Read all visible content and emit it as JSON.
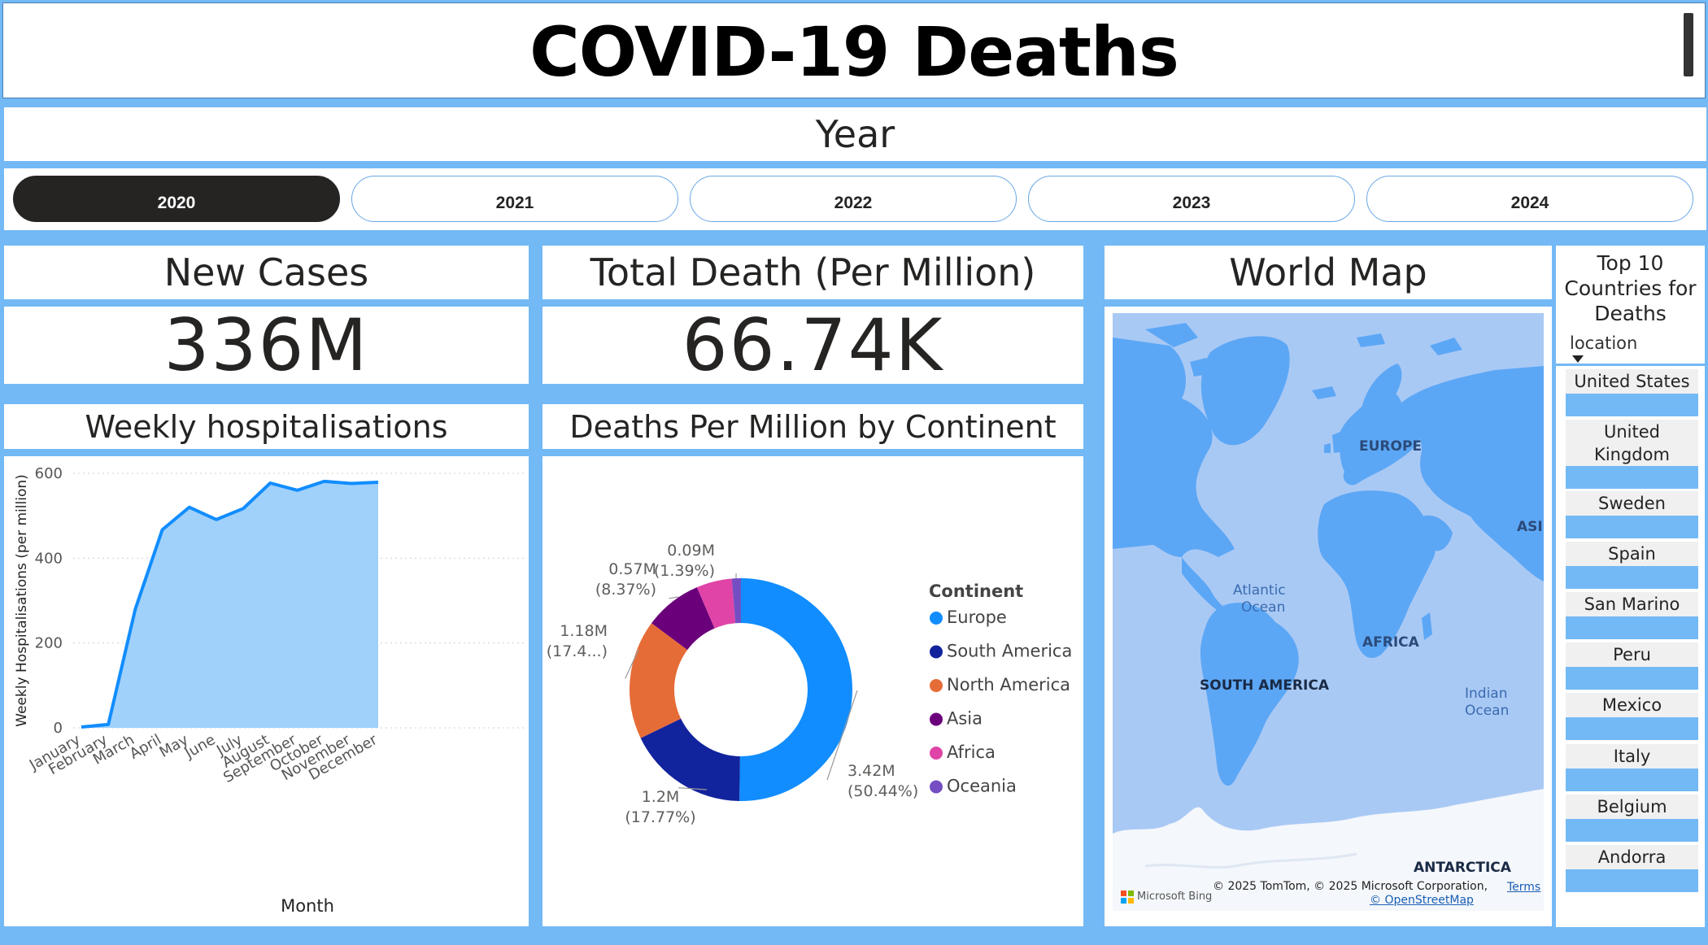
{
  "header": {
    "title": "COVID-19 Deaths"
  },
  "year_filter": {
    "title": "Year",
    "options": [
      "2020",
      "2021",
      "2022",
      "2023",
      "2024"
    ],
    "selected": "2020"
  },
  "kpis": {
    "new_cases": {
      "label": "New Cases",
      "value": "336M"
    },
    "total_death": {
      "label": "Total Death (Per Million)",
      "value": "66.74K"
    }
  },
  "hosp_chart": {
    "title": "Weekly hospitalisations"
  },
  "donut_chart": {
    "title": "Deaths Per Million by Continent"
  },
  "map": {
    "title": "World Map",
    "labels": {
      "europe": "EUROPE",
      "asia": "ASI",
      "atlantic_1": "Atlantic",
      "atlantic_2": "Ocean",
      "africa": "AFRICA",
      "south_america": "SOUTH AMERICA",
      "indian_1": "Indian",
      "indian_2": "Ocean",
      "antarctica": "ANTARCTICA"
    },
    "attribution": "© 2025 TomTom, © 2025 Microsoft Corporation,",
    "terms_link": "Terms",
    "osm_link": "© OpenStreetMap",
    "bing_logo_text": "Microsoft Bing"
  },
  "top_countries": {
    "title_lines": [
      "Top 10",
      "Countries for",
      "Deaths"
    ],
    "column_label": "location",
    "items": [
      "United States",
      "United Kingdom",
      "Sweden",
      "Spain",
      "San Marino",
      "Peru",
      "Mexico",
      "Italy",
      "Belgium",
      "Andorra"
    ]
  },
  "chart_data": [
    {
      "type": "area",
      "title": "Weekly hospitalisations",
      "xlabel": "Month",
      "ylabel": "Weekly Hospitalisations (per million)",
      "categories": [
        "January",
        "February",
        "March",
        "April",
        "May",
        "June",
        "July",
        "August",
        "September",
        "October",
        "November",
        "December"
      ],
      "values": [
        2,
        8,
        280,
        467,
        520,
        491,
        517,
        577,
        560,
        581,
        576,
        579
      ],
      "ylim": [
        0,
        600
      ],
      "yticks": [
        0,
        200,
        400,
        600
      ],
      "grid": true,
      "color": "#118dff",
      "fill": "#a0d1fb"
    },
    {
      "type": "pie",
      "title": "Deaths Per Million by Continent",
      "legend_title": "Continent",
      "legend_position": "right",
      "slices": [
        {
          "name": "Europe",
          "value": 3.42,
          "label": "3.42M",
          "pct_label": "(50.44%)",
          "color": "#118dff"
        },
        {
          "name": "South America",
          "value": 1.2,
          "label": "1.2M",
          "pct_label": "(17.77%)",
          "color": "#12239e"
        },
        {
          "name": "North America",
          "value": 1.18,
          "label": "1.18M",
          "pct_label": "(17.4...)",
          "color": "#e66c37"
        },
        {
          "name": "Asia",
          "value": 0.57,
          "label": "0.57M",
          "pct_label": "(8.37%)",
          "color": "#6b007b"
        },
        {
          "name": "Africa",
          "value": 0.35,
          "label": "",
          "pct_label": "",
          "color": "#e044a7"
        },
        {
          "name": "Oceania",
          "value": 0.09,
          "label": "0.09M",
          "pct_label": "(1.39%)",
          "color": "#744ec2"
        }
      ]
    }
  ]
}
